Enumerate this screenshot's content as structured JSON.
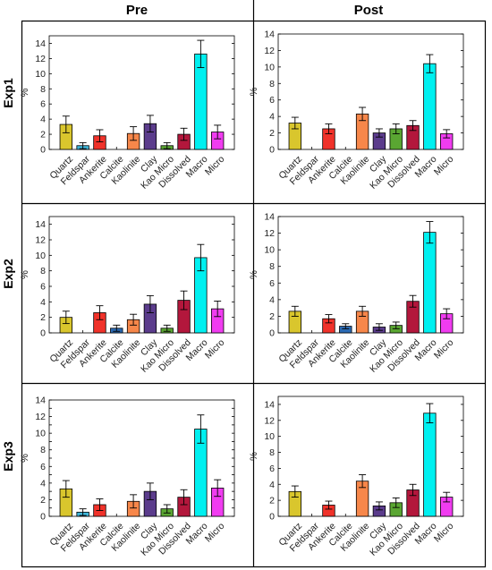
{
  "figure": {
    "column_titles": [
      "Pre",
      "Post"
    ],
    "row_titles": [
      "Exp1",
      "Exp2",
      "Exp3"
    ]
  },
  "colors": {
    "Quartz": "#d9c62d",
    "Feldspar": "#3fb6d9",
    "Ankerite": "#f0322a",
    "Calcite": "#2b6ab3",
    "Kaolinite": "#f7874a",
    "Clay": "#5b3c8c",
    "Kao Micro": "#5aa632",
    "Dissolved": "#b3173c",
    "Macro": "#00f0f0",
    "Micro": "#f03cf0"
  },
  "chart_data": [
    {
      "type": "bar",
      "row": "Exp1",
      "column": "Pre",
      "categories": [
        "Quartz",
        "Feldspar",
        "Ankerite",
        "Calcite",
        "Kaolinite",
        "Clay",
        "Kao Micro",
        "Dissolved",
        "Macro",
        "Micro"
      ],
      "values": [
        3.3,
        0.5,
        1.8,
        0,
        2.1,
        3.4,
        0.5,
        2.0,
        12.6,
        2.3
      ],
      "errors": [
        1.1,
        0.4,
        0.8,
        0,
        0.9,
        1.1,
        0.4,
        0.8,
        1.8,
        0.9
      ],
      "ylabel": "%",
      "ylim": [
        0,
        15
      ],
      "yticks": [
        0,
        2,
        4,
        6,
        8,
        10,
        12,
        14
      ]
    },
    {
      "type": "bar",
      "row": "Exp1",
      "column": "Post",
      "categories": [
        "Quartz",
        "Feldspar",
        "Ankerite",
        "Calcite",
        "Kaolinite",
        "Clay",
        "Kao Micro",
        "Dissolved",
        "Macro",
        "Micro"
      ],
      "values": [
        3.2,
        0,
        2.5,
        0,
        4.3,
        2.0,
        2.5,
        2.9,
        10.4,
        1.9
      ],
      "errors": [
        0.7,
        0,
        0.6,
        0,
        0.8,
        0.5,
        0.6,
        0.6,
        1.1,
        0.5
      ],
      "ylabel": "%",
      "ylim": [
        0,
        14
      ],
      "yticks": [
        0,
        2,
        4,
        6,
        8,
        10,
        12,
        14
      ]
    },
    {
      "type": "bar",
      "row": "Exp2",
      "column": "Pre",
      "categories": [
        "Quartz",
        "Feldspar",
        "Ankerite",
        "Calcite",
        "Kaolinite",
        "Clay",
        "Kao Micro",
        "Dissolved",
        "Macro",
        "Micro"
      ],
      "values": [
        2.0,
        0,
        2.6,
        0.6,
        1.7,
        3.7,
        0.6,
        4.2,
        9.7,
        3.1
      ],
      "errors": [
        0.8,
        0,
        0.9,
        0.4,
        0.7,
        1.1,
        0.4,
        1.2,
        1.7,
        1.0
      ],
      "ylabel": "%",
      "ylim": [
        0,
        15
      ],
      "yticks": [
        0,
        2,
        4,
        6,
        8,
        10,
        12,
        14
      ]
    },
    {
      "type": "bar",
      "row": "Exp2",
      "column": "Post",
      "categories": [
        "Quartz",
        "Feldspar",
        "Ankerite",
        "Calcite",
        "Kaolinite",
        "Clay",
        "Kao Micro",
        "Dissolved",
        "Macro",
        "Micro"
      ],
      "values": [
        2.6,
        0,
        1.7,
        0.8,
        2.6,
        0.7,
        0.9,
        3.8,
        12.1,
        2.3
      ],
      "errors": [
        0.6,
        0,
        0.5,
        0.3,
        0.6,
        0.4,
        0.4,
        0.7,
        1.3,
        0.6
      ],
      "ylabel": "%",
      "ylim": [
        0,
        14
      ],
      "yticks": [
        0,
        2,
        4,
        6,
        8,
        10,
        12,
        14
      ]
    },
    {
      "type": "bar",
      "row": "Exp3",
      "column": "Pre",
      "categories": [
        "Quartz",
        "Feldspar",
        "Ankerite",
        "Calcite",
        "Kaolinite",
        "Clay",
        "Kao Micro",
        "Dissolved",
        "Macro",
        "Micro"
      ],
      "values": [
        3.3,
        0.5,
        1.4,
        0,
        1.8,
        3.0,
        0.9,
        2.3,
        10.5,
        3.4
      ],
      "errors": [
        1.0,
        0.4,
        0.7,
        0,
        0.8,
        1.0,
        0.5,
        0.9,
        1.7,
        1.0
      ],
      "ylabel": "%",
      "ylim": [
        0,
        14
      ],
      "yticks": [
        0,
        1,
        2,
        3,
        4,
        5,
        6,
        7,
        8,
        9,
        10,
        11,
        12,
        13,
        14
      ],
      "yticklabels": [
        "0",
        "",
        "2",
        "",
        "4",
        "",
        "6",
        "",
        "8",
        "",
        "10",
        "",
        "12",
        "",
        "14"
      ]
    },
    {
      "type": "bar",
      "row": "Exp3",
      "column": "Post",
      "categories": [
        "Quartz",
        "Feldspar",
        "Ankerite",
        "Calcite",
        "Kaolinite",
        "Clay",
        "Kao Micro",
        "Dissolved",
        "Macro",
        "Micro"
      ],
      "values": [
        3.1,
        0,
        1.4,
        0,
        4.4,
        1.3,
        1.7,
        3.3,
        12.9,
        2.4
      ],
      "errors": [
        0.7,
        0,
        0.5,
        0,
        0.8,
        0.5,
        0.6,
        0.7,
        1.2,
        0.6
      ],
      "ylabel": "%",
      "ylim": [
        0,
        15
      ],
      "yticks": [
        0,
        2,
        4,
        6,
        8,
        10,
        12,
        14
      ]
    }
  ]
}
